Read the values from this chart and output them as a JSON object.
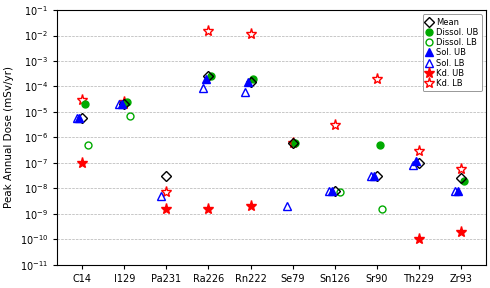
{
  "categories": [
    "C14",
    "I129",
    "Pa231",
    "Ra226",
    "Rn222",
    "Se79",
    "Sn126",
    "Sr90",
    "Th229",
    "Zr93"
  ],
  "Mean": [
    6e-06,
    2e-05,
    3e-08,
    0.00025,
    0.00015,
    6e-07,
    8e-09,
    3e-08,
    1e-07,
    2.5e-08
  ],
  "Dissol_UB": [
    2e-05,
    2.5e-05,
    null,
    0.00025,
    0.0002,
    6e-07,
    null,
    5e-07,
    null,
    2e-08
  ],
  "Dissol_LB": [
    5e-07,
    7e-06,
    null,
    null,
    null,
    null,
    7e-09,
    1.5e-09,
    null,
    null
  ],
  "Sol_UB": [
    6e-06,
    2e-05,
    null,
    0.0002,
    0.00015,
    null,
    8e-09,
    3e-08,
    1.2e-07,
    8e-09
  ],
  "Sol_LB": [
    6e-06,
    2e-05,
    5e-09,
    9e-05,
    6e-05,
    2e-09,
    8e-09,
    3e-08,
    8e-08,
    8e-09
  ],
  "Kd_UB": [
    1e-07,
    2e-05,
    1.5e-09,
    1.5e-09,
    2e-09,
    6e-07,
    null,
    null,
    1e-10,
    2e-10
  ],
  "Kd_LB": [
    3e-05,
    2.5e-05,
    7e-09,
    0.015,
    0.012,
    null,
    3e-06,
    0.0002,
    3e-07,
    6e-08
  ],
  "ylabel": "Peak Annual Dose (mSv/yr)",
  "green": "#00aa00",
  "blue": "#0000ff",
  "red": "#ff0000",
  "black": "#000000"
}
